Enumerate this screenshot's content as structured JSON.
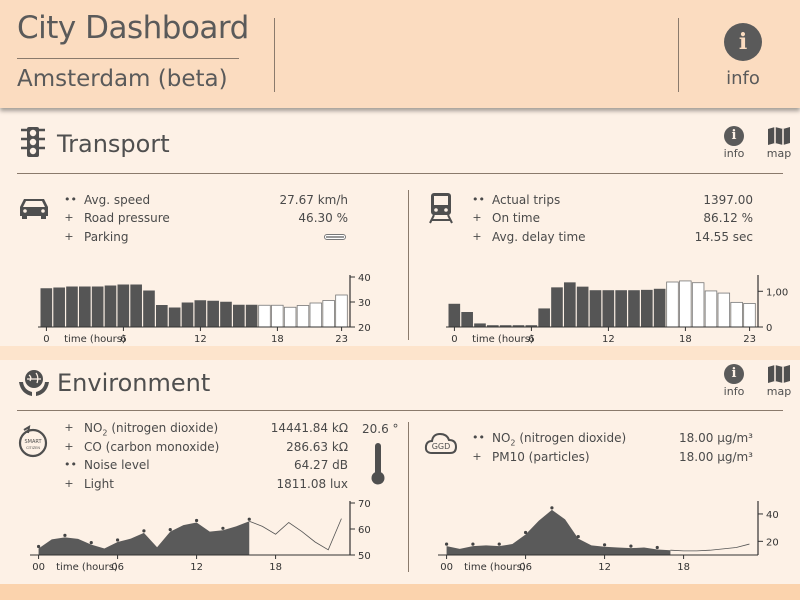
{
  "header": {
    "title": "City Dashboard",
    "subtitle": "Amsterdam (beta)",
    "info_label": "info"
  },
  "transport": {
    "title": "Transport",
    "info_label": "info",
    "map_label": "map",
    "car": {
      "rows": [
        {
          "marker": "••",
          "label": "Avg. speed",
          "value": "27.67 km/h"
        },
        {
          "marker": "+",
          "label": "Road pressure",
          "value": "46.30 %"
        },
        {
          "marker": "+",
          "label": "Parking",
          "value": ""
        }
      ]
    },
    "train": {
      "rows": [
        {
          "marker": "••",
          "label": "Actual trips",
          "value": "1397.00"
        },
        {
          "marker": "+",
          "label": "On time",
          "value": "86.12 %"
        },
        {
          "marker": "+",
          "label": "Avg. delay time",
          "value": "14.55 sec"
        }
      ]
    }
  },
  "environment": {
    "title": "Environment",
    "info_label": "info",
    "map_label": "map",
    "temperature": "20.6 °",
    "smart_badge": "SMART CITIZEN",
    "ggd_badge": "GGD",
    "sensor": {
      "rows": [
        {
          "marker": "+",
          "label_pre": "NO",
          "label_sub": "2",
          "label_post": " (nitrogen dioxide)",
          "value": "14441.84 kΩ"
        },
        {
          "marker": "+",
          "label": "CO (carbon monoxide)",
          "value": "286.63 kΩ"
        },
        {
          "marker": "••",
          "label": "Noise level",
          "value": "64.27 dB"
        },
        {
          "marker": "+",
          "label": "Light",
          "value": "1811.08 lux"
        }
      ]
    },
    "ggd": {
      "rows": [
        {
          "marker": "••",
          "label_pre": "NO",
          "label_sub": "2",
          "label_post": " (nitrogen dioxide)",
          "value": "18.00 μg/m³"
        },
        {
          "marker": "+",
          "label": "PM10 (particles)",
          "value": "18.00 μg/m³"
        }
      ]
    }
  },
  "colors": {
    "dark": "#5a5a5a",
    "bar_dark": "#555555",
    "bar_light": "#ffffff",
    "bg": "#fdf1e6"
  },
  "chart_data": [
    {
      "type": "bar",
      "title": "Avg. speed",
      "xlabel": "time (hours)",
      "ylabel": "km/h",
      "x": [
        0,
        1,
        2,
        3,
        4,
        5,
        6,
        7,
        8,
        9,
        10,
        11,
        12,
        13,
        14,
        15,
        16,
        17,
        18,
        19,
        20,
        21,
        22,
        23
      ],
      "values": [
        35.5,
        35.8,
        36.2,
        36.2,
        36.2,
        36.6,
        37.0,
        37.0,
        34.6,
        28.8,
        27.8,
        29.8,
        30.7,
        30.5,
        30.1,
        28.9,
        28.9,
        28.7,
        28.7,
        27.9,
        28.6,
        29.6,
        30.6,
        32.8
      ],
      "forecast_from": 17,
      "ylim": [
        20,
        40
      ],
      "yticks": [
        20,
        30,
        40
      ],
      "xticks": [
        0,
        6,
        12,
        18,
        23
      ]
    },
    {
      "type": "bar",
      "title": "Actual trips",
      "xlabel": "time (hours)",
      "ylabel": "trips",
      "x": [
        0,
        1,
        2,
        3,
        4,
        5,
        6,
        7,
        8,
        9,
        10,
        11,
        12,
        13,
        14,
        15,
        16,
        17,
        18,
        19,
        20,
        21,
        22,
        23
      ],
      "values": [
        650,
        420,
        100,
        50,
        50,
        50,
        50,
        520,
        1110,
        1250,
        1130,
        1030,
        1030,
        1030,
        1030,
        1040,
        1070,
        1260,
        1290,
        1240,
        1010,
        950,
        690,
        660
      ],
      "forecast_from": 17,
      "ylim": [
        0,
        1400
      ],
      "yticks": [
        0,
        1000
      ],
      "ytick_labels": [
        "0",
        "1,000"
      ],
      "xticks": [
        0,
        6,
        12,
        18,
        23
      ]
    },
    {
      "type": "area",
      "title": "Noise level",
      "xlabel": "time (hours)",
      "ylabel": "dB",
      "x": [
        0,
        1,
        2,
        3,
        4,
        5,
        6,
        7,
        8,
        9,
        10,
        11,
        12,
        13,
        14,
        15,
        16,
        17,
        18,
        19,
        20,
        21,
        22,
        23
      ],
      "values": [
        52.5,
        56.0,
        56.8,
        56.2,
        54.0,
        52.5,
        55.0,
        56.3,
        58.5,
        53.0,
        59.0,
        61.5,
        62.5,
        59.0,
        59.5,
        61.0,
        63.0,
        61.0,
        58.0,
        62.5,
        59.0,
        55.0,
        52.0,
        64.0
      ],
      "forecast_from": 16,
      "ylim": [
        50,
        70
      ],
      "yticks": [
        50,
        60,
        70
      ],
      "xticks": [
        0,
        6,
        12,
        18
      ],
      "xtick_labels": [
        "00",
        "06",
        "12",
        "18"
      ]
    },
    {
      "type": "area",
      "title": "NO2 (nitrogen dioxide) GGD",
      "xlabel": "time (hours)",
      "ylabel": "μg/m³",
      "x": [
        0,
        1,
        2,
        3,
        4,
        5,
        6,
        7,
        8,
        9,
        10,
        11,
        12,
        13,
        14,
        15,
        16,
        17,
        18,
        19,
        20,
        21,
        22,
        23
      ],
      "values": [
        16.5,
        14.5,
        16.5,
        17.0,
        16.5,
        18.0,
        25.0,
        35.0,
        43.0,
        36.0,
        22.0,
        17.0,
        16.0,
        15.5,
        15.0,
        15.5,
        14.0,
        13.5,
        13.0,
        13.0,
        13.5,
        14.5,
        15.5,
        18.0
      ],
      "forecast_from": 17,
      "ylim": [
        10,
        48
      ],
      "yticks": [
        20,
        40
      ],
      "xticks": [
        0,
        6,
        12,
        18
      ],
      "xtick_labels": [
        "00",
        "06",
        "12",
        "18"
      ]
    }
  ]
}
